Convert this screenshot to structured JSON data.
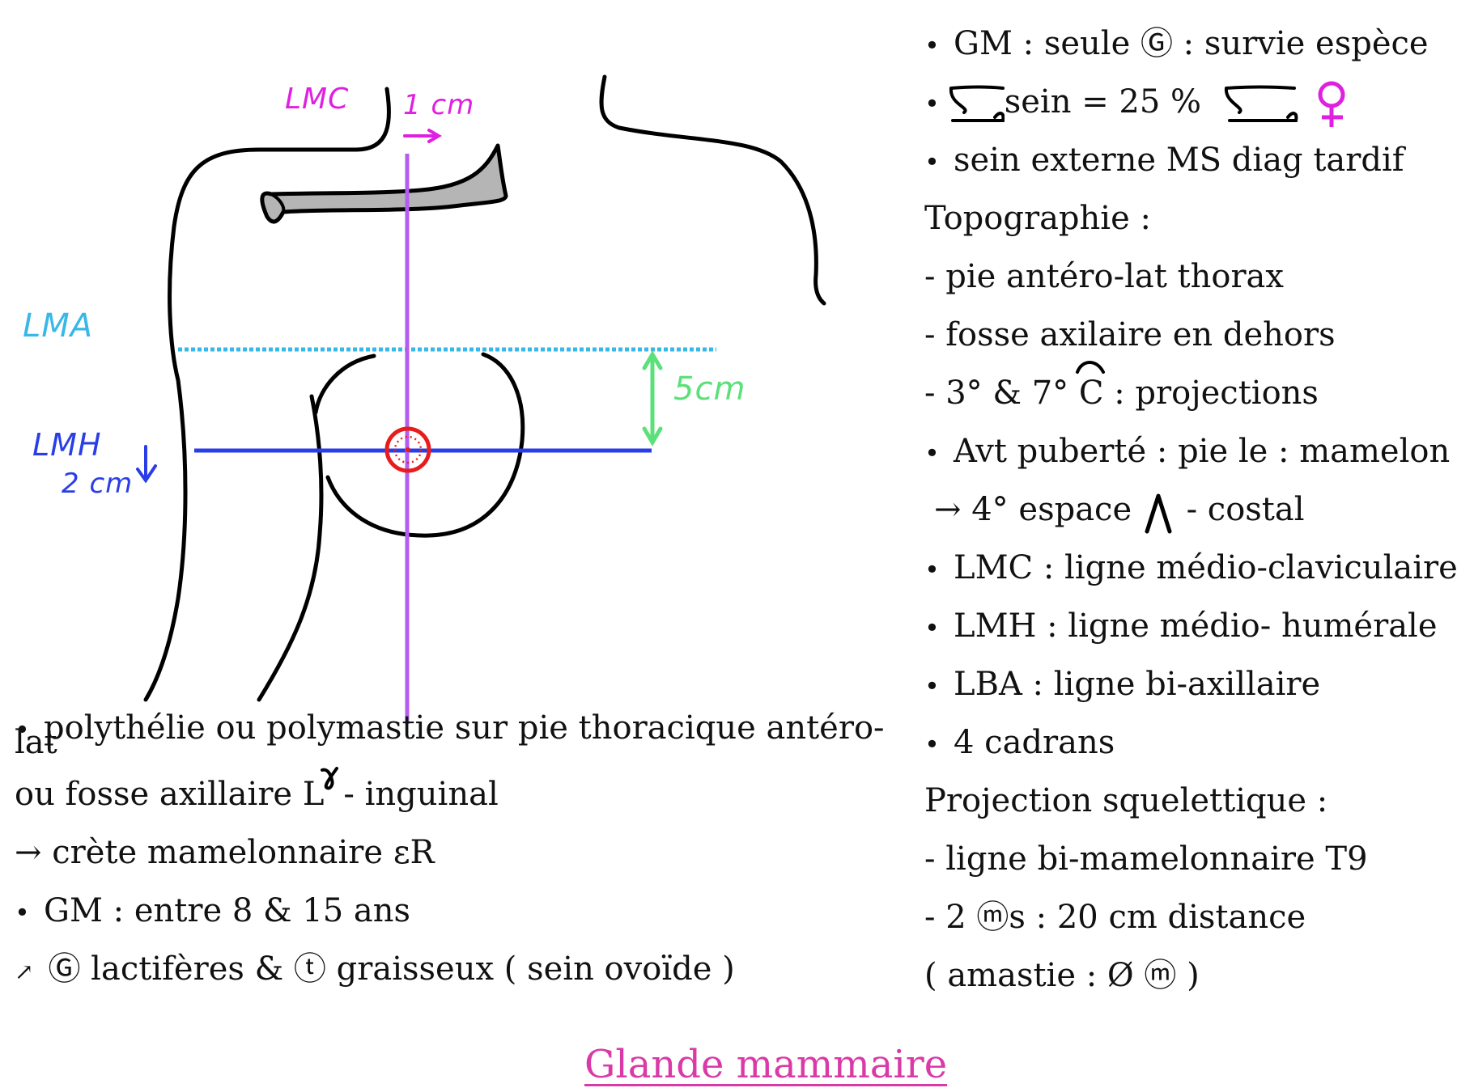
{
  "diagram": {
    "labels": {
      "lmc": "LMC",
      "lmc_offset": "1 cm",
      "lma": "LMA",
      "lmh": "LMH",
      "lmh_offset": "2 cm",
      "distance": "5cm"
    },
    "colors": {
      "lmc": "#e020e0",
      "lma": "#38b8e8",
      "lmh": "#2a3ee8",
      "distance": "#5ce07a",
      "vertical_line": "#b35cf0",
      "nipple": "#e81c1c",
      "clavicle": "#b5b5b5"
    }
  },
  "right_notes": [
    {
      "bullet": true,
      "text": "GM : seule Ⓖ : survie espèce"
    },
    {
      "bullet": true,
      "text": "sein = 25 %"
    },
    {
      "bullet": true,
      "text": "sein externe MS diag tardif"
    },
    {
      "bullet": false,
      "text": "Topographie :"
    },
    {
      "bullet": false,
      "text": "- pie antéro-lat thorax"
    },
    {
      "bullet": false,
      "text": "- fosse axilaire en dehors"
    },
    {
      "bullet": false,
      "text": "- 3° & 7°"
    },
    {
      "bullet": false,
      "text": "C"
    },
    {
      "bullet": false,
      "text": ": projections"
    },
    {
      "bullet": true,
      "text": "Avt puberté : pie   le : mamelon"
    },
    {
      "bullet": false,
      "text": "→ 4° espace"
    },
    {
      "bullet": false,
      "text": "- costal"
    },
    {
      "bullet": true,
      "text": "LMC : ligne médio-claviculaire"
    },
    {
      "bullet": true,
      "text": "LMH : ligne médio- humérale"
    },
    {
      "bullet": true,
      "text": "LBA : ligne bi-axillaire"
    },
    {
      "bullet": true,
      "text": "4 cadrans"
    },
    {
      "bullet": false,
      "text": "Projection squelettique :"
    },
    {
      "bullet": false,
      "text": "- ligne bi-mamelonnaire T9"
    },
    {
      "bullet": false,
      "text": "- 2 ⓜs : 20 cm distance"
    },
    {
      "bullet": false,
      "text": "( amastie : Ø ⓜ )"
    }
  ],
  "bottom_notes": [
    "polythélie ou polymastie sur pie thoracique antéro-",
    "lat",
    "ou fosse axillaire L",
    "- inguinal",
    "→ crète mamelonnaire εR",
    "GM : entre 8 & 15 ans",
    "↗",
    "Ⓖ lactifères & ⓣ graisseux ( sein ovoïde )"
  ],
  "title": "Glande mammaire",
  "title_color": "#d93aa8"
}
